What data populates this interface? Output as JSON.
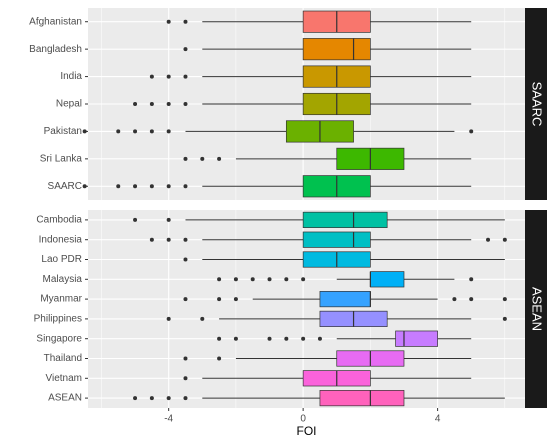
{
  "chart_data": [
    {
      "type": "box",
      "facet": "SAARC",
      "xlim": [
        -6.4,
        6.6
      ],
      "xticks": [
        -4,
        0,
        4
      ],
      "grid": true,
      "categories": [
        "Afghanistan",
        "Bangladesh",
        "India",
        "Nepal",
        "Pakistan",
        "Sri Lanka",
        "SAARC"
      ],
      "boxes": [
        {
          "color": "#F8766D",
          "whisker_low": -3,
          "q1": 0,
          "median": 1,
          "q3": 2,
          "whisker_high": 5,
          "outliers": [
            -4,
            -3.5
          ]
        },
        {
          "color": "#E58700",
          "whisker_low": -3,
          "q1": 0,
          "median": 1.5,
          "q3": 2,
          "whisker_high": 5,
          "outliers": [
            -3.5
          ]
        },
        {
          "color": "#C99800",
          "whisker_low": -3,
          "q1": 0,
          "median": 1,
          "q3": 2,
          "whisker_high": 5,
          "outliers": [
            -4.5,
            -4,
            -3.5
          ]
        },
        {
          "color": "#A3A500",
          "whisker_low": -3,
          "q1": 0,
          "median": 1,
          "q3": 2,
          "whisker_high": 5,
          "outliers": [
            -5,
            -4.5,
            -4,
            -3.5
          ]
        },
        {
          "color": "#6BB100",
          "whisker_low": -3.5,
          "q1": -0.5,
          "median": 0.5,
          "q3": 1.5,
          "whisker_high": 4.5,
          "outliers": [
            -6.5,
            -5.5,
            -5,
            -4.5,
            -4,
            5
          ]
        },
        {
          "color": "#3DB800",
          "whisker_low": -2,
          "q1": 1,
          "median": 2,
          "q3": 3,
          "whisker_high": 5,
          "outliers": [
            -3.5,
            -3,
            -2.5
          ]
        },
        {
          "color": "#00C14F",
          "whisker_low": -3,
          "q1": 0,
          "median": 1,
          "q3": 2,
          "whisker_high": 5,
          "outliers": [
            -6.5,
            -5.5,
            -5,
            -4.5,
            -4,
            -3.5
          ]
        }
      ]
    },
    {
      "type": "box",
      "facet": "ASEAN",
      "xlim": [
        -6.4,
        6.6
      ],
      "xticks": [
        -4,
        0,
        4
      ],
      "grid": true,
      "xlabel": "FOI",
      "categories": [
        "Cambodia",
        "Indonesia",
        "Lao PDR",
        "Malaysia",
        "Myanmar",
        "Philippines",
        "Singapore",
        "Thailand",
        "Vietnam",
        "ASEAN"
      ],
      "boxes": [
        {
          "color": "#00C1A3",
          "whisker_low": -3.5,
          "q1": 0,
          "median": 1.5,
          "q3": 2.5,
          "whisker_high": 6,
          "outliers": [
            -5,
            -4
          ]
        },
        {
          "color": "#00BFC4",
          "whisker_low": -3,
          "q1": 0,
          "median": 1.5,
          "q3": 2,
          "whisker_high": 5,
          "outliers": [
            -4.5,
            -4,
            -3.5,
            5.5,
            6
          ]
        },
        {
          "color": "#00BAE0",
          "whisker_low": -3,
          "q1": 0,
          "median": 1,
          "q3": 2,
          "whisker_high": 6,
          "outliers": [
            -3.5
          ]
        },
        {
          "color": "#00B0F6",
          "whisker_low": 1,
          "q1": 2,
          "median": 2,
          "q3": 3,
          "whisker_high": 4.5,
          "outliers": [
            -2.5,
            -2,
            -1.5,
            -1,
            -0.5,
            0,
            5
          ]
        },
        {
          "color": "#35A2FF",
          "whisker_low": -1.5,
          "q1": 0.5,
          "median": 2,
          "q3": 2,
          "whisker_high": 4,
          "outliers": [
            -3.5,
            -2.5,
            -2,
            4.5,
            5,
            6
          ]
        },
        {
          "color": "#9590FF",
          "whisker_low": -2.5,
          "q1": 0.5,
          "median": 1.5,
          "q3": 2.5,
          "whisker_high": 5,
          "outliers": [
            -4,
            -3,
            6
          ]
        },
        {
          "color": "#C77CFF",
          "whisker_low": 1,
          "q1": 2.75,
          "median": 3,
          "q3": 4,
          "whisker_high": 5,
          "outliers": [
            -2.5,
            -2,
            -1,
            -0.5,
            0,
            0.5
          ]
        },
        {
          "color": "#E76BF3",
          "whisker_low": -2,
          "q1": 1,
          "median": 2,
          "q3": 3,
          "whisker_high": 5,
          "outliers": [
            -3.5,
            -2.5
          ]
        },
        {
          "color": "#FA62DB",
          "whisker_low": -3,
          "q1": 0,
          "median": 1,
          "q3": 2,
          "whisker_high": 5,
          "outliers": [
            -3.5
          ]
        },
        {
          "color": "#FF62BC",
          "whisker_low": -3,
          "q1": 0.5,
          "median": 2,
          "q3": 3,
          "whisker_high": 6,
          "outliers": [
            -5,
            -4.5,
            -4,
            -3.5
          ]
        }
      ]
    }
  ]
}
